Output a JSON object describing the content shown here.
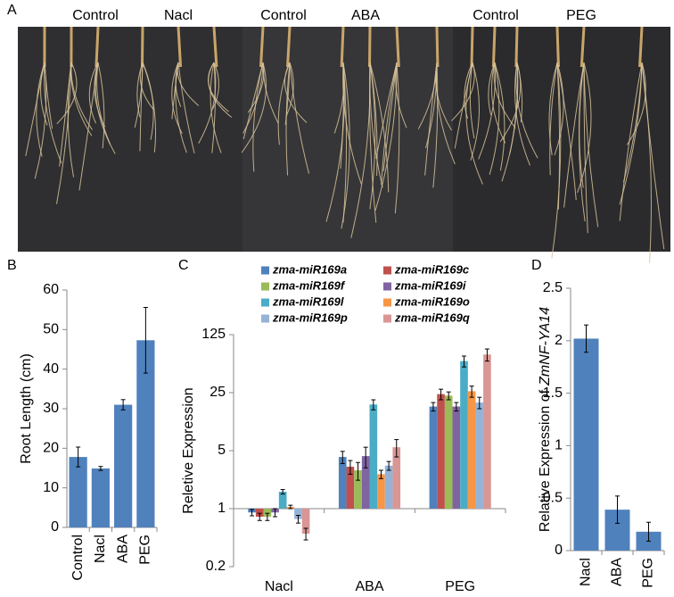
{
  "photo": {
    "panel": "A",
    "labels": [
      "Control",
      "Nacl",
      "Control",
      "ABA",
      "Control",
      "PEG"
    ]
  },
  "chart_data": [
    {
      "type": "bar",
      "panel": "B",
      "ylabel": "Root Length (cm)",
      "categories": [
        "Control",
        "Nacl",
        "ABA",
        "PEG"
      ],
      "values": [
        17.8,
        14.9,
        31,
        47.3
      ],
      "errors": [
        2.5,
        0.5,
        1.3,
        8.3
      ],
      "color": "#4f81bd",
      "ylim": [
        0,
        60
      ],
      "yticks": [
        0,
        10,
        20,
        30,
        40,
        50,
        60
      ],
      "rotate_labels": true
    },
    {
      "type": "bar",
      "panel": "C",
      "ylabel": "Reletive Expression",
      "log_scale": true,
      "categories": [
        "Nacl",
        "ABA",
        "PEG"
      ],
      "series": [
        {
          "name": "zma-miR169a",
          "color": "#4f81bd",
          "values": [
            0.9,
            4.2,
            17
          ],
          "errors": [
            0.08,
            0.7,
            2
          ]
        },
        {
          "name": "zma-miR169c",
          "color": "#c0504d",
          "values": [
            0.8,
            3.2,
            24
          ],
          "errors": [
            0.08,
            0.6,
            3.5
          ]
        },
        {
          "name": "zma-miR169f",
          "color": "#9bbb59",
          "values": [
            0.8,
            2.9,
            23
          ],
          "errors": [
            0.08,
            0.7,
            2.5
          ]
        },
        {
          "name": "zma-miR169i",
          "color": "#8064a2",
          "values": [
            0.9,
            4.3,
            17
          ],
          "errors": [
            0.1,
            1.2,
            2
          ]
        },
        {
          "name": "zma-miR169l",
          "color": "#4bacc6",
          "values": [
            1.6,
            18,
            60
          ],
          "errors": [
            0.1,
            2.5,
            9
          ]
        },
        {
          "name": "zma-miR169o",
          "color": "#f79646",
          "values": [
            1.05,
            2.6,
            26
          ],
          "errors": [
            0.05,
            0.3,
            4
          ]
        },
        {
          "name": "zma-miR169p",
          "color": "#95b3d7",
          "values": [
            0.75,
            3.3,
            19
          ],
          "errors": [
            0.08,
            0.4,
            3
          ]
        },
        {
          "name": "zma-miR169q",
          "color": "#d99694",
          "values": [
            0.5,
            5.5,
            72
          ],
          "errors": [
            0.08,
            1.3,
            12
          ]
        }
      ],
      "ylim": [
        0.2,
        125
      ],
      "yticks": [
        0.2,
        1,
        5,
        25,
        125
      ]
    },
    {
      "type": "bar",
      "panel": "D",
      "ylabel": [
        "Relative Expression of",
        "ZmNF-YA14"
      ],
      "categories": [
        "Nacl",
        "ABA",
        "PEG"
      ],
      "values": [
        2.02,
        0.39,
        0.18
      ],
      "errors": [
        0.13,
        0.13,
        0.09
      ],
      "color": "#4f81bd",
      "ylim": [
        0,
        2.5
      ],
      "yticks": [
        0,
        0.5,
        1,
        1.5,
        2,
        2.5
      ],
      "rotate_labels": true
    }
  ]
}
